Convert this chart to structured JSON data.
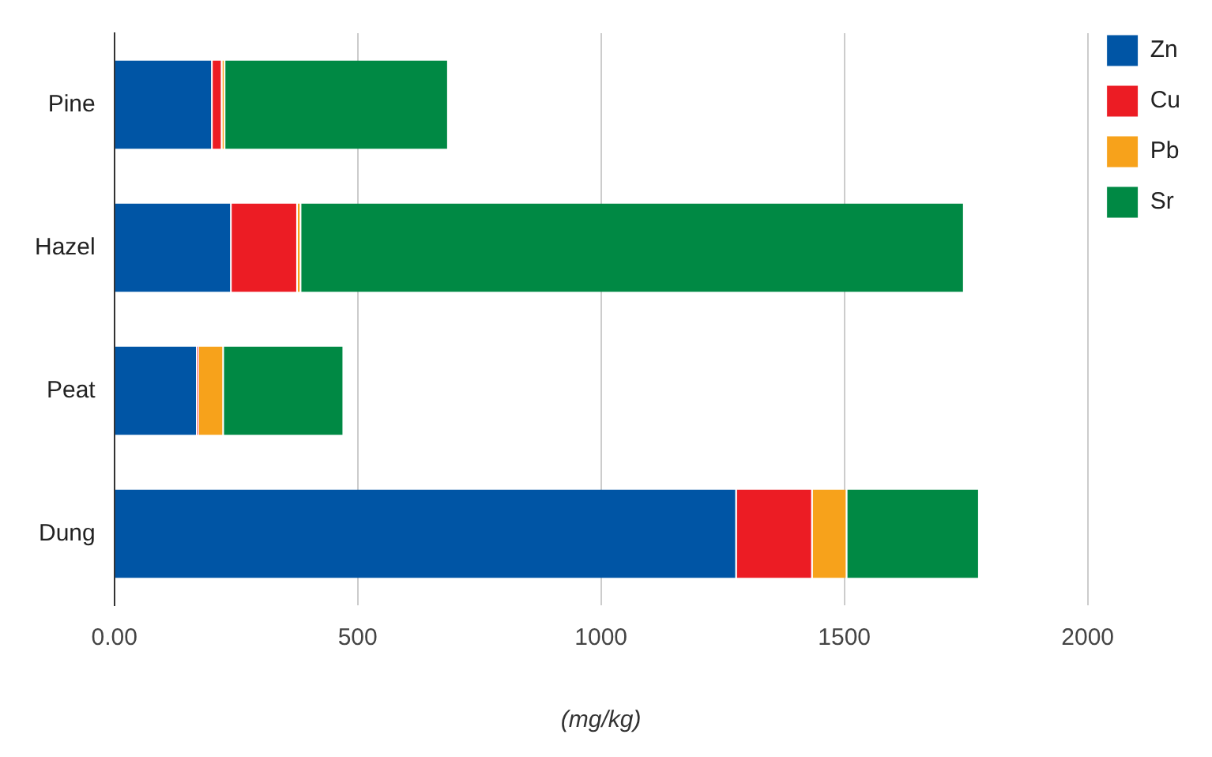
{
  "chart_data": {
    "type": "bar",
    "orientation": "horizontal",
    "stacked": true,
    "xlabel": "(mg/kg)",
    "categories": [
      "Pine",
      "Hazel",
      "Peat",
      "Dung"
    ],
    "series": [
      {
        "name": "Zn",
        "color": "#0055a5",
        "values": [
          202,
          241,
          171,
          1279
        ]
      },
      {
        "name": "Cu",
        "color": "#ec1c24",
        "values": [
          20,
          136,
          3,
          156
        ]
      },
      {
        "name": "Pb",
        "color": "#f7a21b",
        "values": [
          6,
          7,
          51,
          71
        ]
      },
      {
        "name": "Sr",
        "color": "#008944",
        "values": [
          459,
          1363,
          247,
          272
        ]
      }
    ],
    "xlim": [
      0,
      2000
    ],
    "xticks": [
      {
        "value": 0,
        "label": "0.00"
      },
      500,
      1000,
      1500,
      2000
    ],
    "grid": "x",
    "legend": "top right"
  }
}
